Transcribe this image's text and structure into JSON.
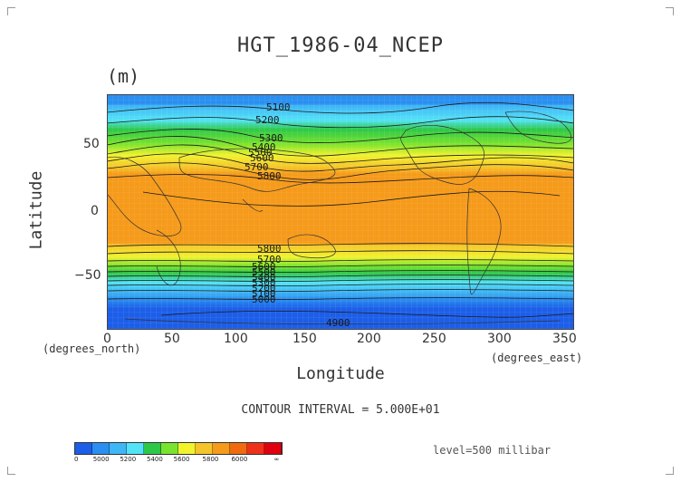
{
  "title": "HGT_1986-04_NCEP",
  "units": "(m)",
  "axes": {
    "ylabel": "Latitude",
    "xlabel": "Longitude",
    "y_unit": "(degrees_north)",
    "x_unit": "(degrees_east)",
    "y_ticks": [
      "50",
      "0",
      "−50"
    ],
    "x_ticks": [
      "0",
      "50",
      "100",
      "150",
      "200",
      "250",
      "300",
      "350"
    ]
  },
  "contour_labels": [
    "5100",
    "5200",
    "5300",
    "5400",
    "5500",
    "5600",
    "5700",
    "5800",
    "5800",
    "5700",
    "5600",
    "5500",
    "5400",
    "5300",
    "5200",
    "5100",
    "5000",
    "4900"
  ],
  "contour_interval": "CONTOUR INTERVAL = 5.000E+01",
  "level": "level=500 millibar",
  "colorbar": {
    "labels": [
      "0",
      "5000",
      "5200",
      "5400",
      "5600",
      "5800",
      "6000",
      "∞"
    ],
    "colors": [
      "#1c5ee8",
      "#2a8ff0",
      "#3fb6f5",
      "#53e3f7",
      "#2ec848",
      "#79e32e",
      "#f2f22e",
      "#f5c42a",
      "#f59a1a",
      "#f06a10",
      "#f0301a",
      "#e00010"
    ]
  },
  "chart_data": {
    "type": "heatmap",
    "title": "HGT_1986-04_NCEP",
    "units": "(m)",
    "xlabel": "Longitude",
    "ylabel": "Latitude",
    "xlim": [
      0,
      360
    ],
    "ylim": [
      -90,
      90
    ],
    "variable_level": "500 millibar",
    "contour_interval": 50,
    "bands_by_latitude": [
      {
        "lat": 90,
        "value": 5150
      },
      {
        "lat": 70,
        "value": 5250
      },
      {
        "lat": 55,
        "value": 5450
      },
      {
        "lat": 40,
        "value": 5650
      },
      {
        "lat": 30,
        "value": 5800
      },
      {
        "lat": 0,
        "value": 5860
      },
      {
        "lat": -25,
        "value": 5800
      },
      {
        "lat": -35,
        "value": 5650
      },
      {
        "lat": -45,
        "value": 5450
      },
      {
        "lat": -55,
        "value": 5250
      },
      {
        "lat": -70,
        "value": 5000
      },
      {
        "lat": -90,
        "value": 4900
      }
    ]
  }
}
